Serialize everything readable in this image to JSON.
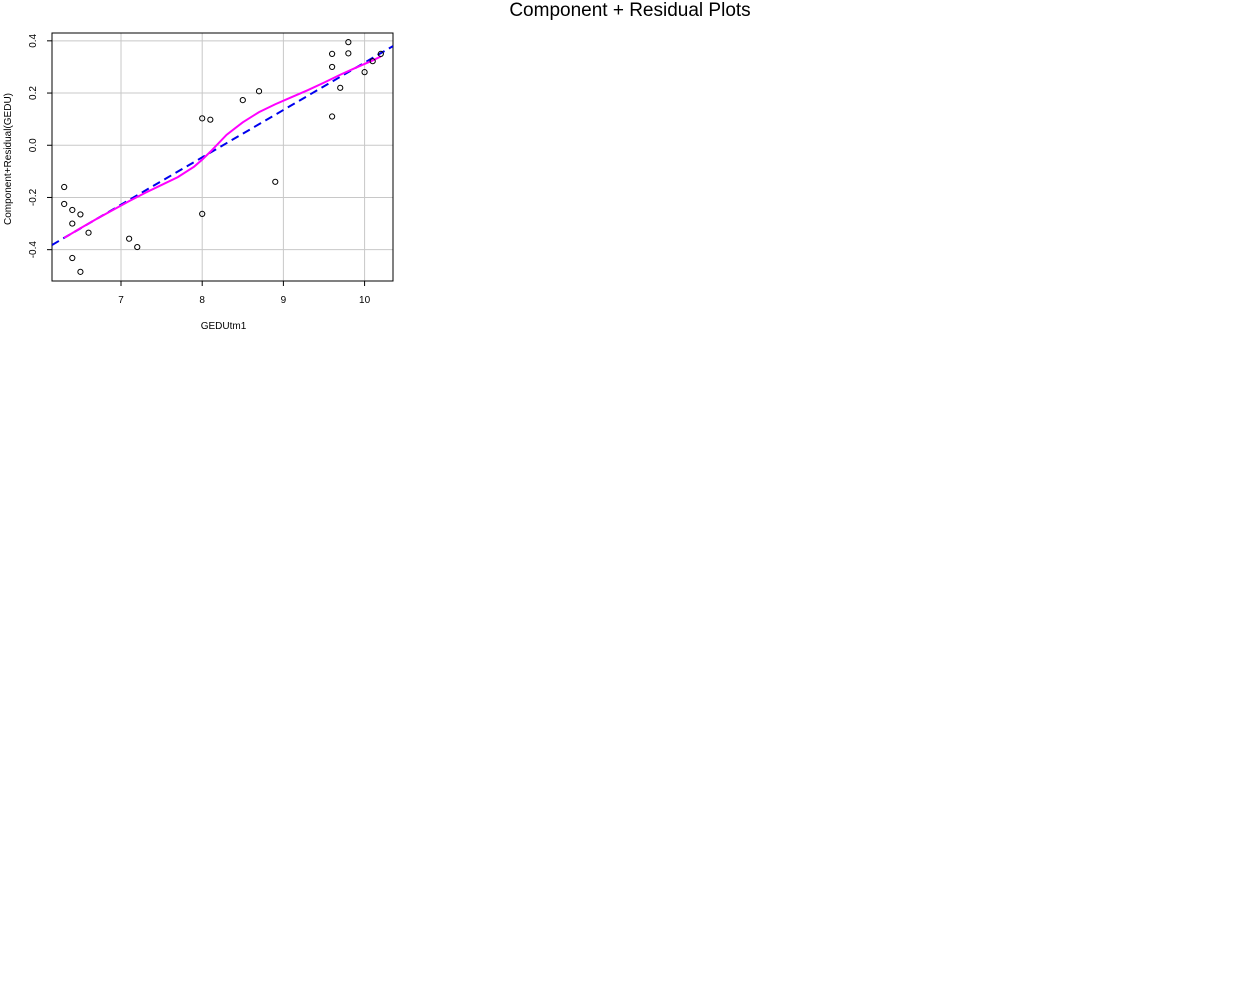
{
  "page_title": "Component + Residual Plots",
  "chart_data": {
    "type": "scatter",
    "title": "",
    "xlabel": "GEDUtm1",
    "ylabel": "Component+Residual(GEDU)",
    "xlim": [
      6.15,
      10.35
    ],
    "ylim": [
      -0.52,
      0.43
    ],
    "x_ticks": [
      7,
      8,
      9,
      10
    ],
    "y_ticks": [
      -0.4,
      -0.2,
      0.0,
      0.2,
      0.4
    ],
    "x_tick_labels": [
      "7",
      "8",
      "9",
      "10"
    ],
    "y_tick_labels": [
      "-0.4",
      "-0.2",
      "0.0",
      "0.2",
      "0.4"
    ],
    "grid": true,
    "points": [
      {
        "x": 6.3,
        "y": -0.16
      },
      {
        "x": 6.3,
        "y": -0.225
      },
      {
        "x": 6.4,
        "y": -0.248
      },
      {
        "x": 6.4,
        "y": -0.3
      },
      {
        "x": 6.5,
        "y": -0.265
      },
      {
        "x": 6.6,
        "y": -0.335
      },
      {
        "x": 6.4,
        "y": -0.432
      },
      {
        "x": 6.5,
        "y": -0.485
      },
      {
        "x": 7.1,
        "y": -0.358
      },
      {
        "x": 7.2,
        "y": -0.39
      },
      {
        "x": 8.0,
        "y": 0.103
      },
      {
        "x": 8.1,
        "y": 0.098
      },
      {
        "x": 8.0,
        "y": -0.263
      },
      {
        "x": 8.5,
        "y": 0.173
      },
      {
        "x": 8.7,
        "y": 0.207
      },
      {
        "x": 8.9,
        "y": -0.14
      },
      {
        "x": 9.6,
        "y": 0.35
      },
      {
        "x": 9.6,
        "y": 0.3
      },
      {
        "x": 9.6,
        "y": 0.11
      },
      {
        "x": 9.7,
        "y": 0.22
      },
      {
        "x": 9.8,
        "y": 0.395
      },
      {
        "x": 9.8,
        "y": 0.352
      },
      {
        "x": 10.0,
        "y": 0.28
      },
      {
        "x": 10.1,
        "y": 0.322
      },
      {
        "x": 10.2,
        "y": 0.35
      }
    ],
    "series": [
      {
        "line_style": "dashed",
        "color": "#0000ee",
        "x": [
          6.15,
          10.35
        ],
        "y": [
          -0.382,
          0.38
        ]
      },
      {
        "line_style": "solid",
        "color": "#ff00ff",
        "x": [
          6.3,
          6.5,
          6.7,
          6.9,
          7.1,
          7.3,
          7.5,
          7.7,
          7.9,
          8.0,
          8.1,
          8.3,
          8.5,
          8.7,
          8.9,
          9.1,
          9.3,
          9.5,
          9.7,
          9.9,
          10.1,
          10.2
        ],
        "y": [
          -0.355,
          -0.318,
          -0.282,
          -0.248,
          -0.214,
          -0.182,
          -0.152,
          -0.122,
          -0.082,
          -0.055,
          -0.025,
          0.04,
          0.088,
          0.127,
          0.157,
          0.184,
          0.211,
          0.24,
          0.27,
          0.298,
          0.325,
          0.34
        ]
      }
    ]
  }
}
